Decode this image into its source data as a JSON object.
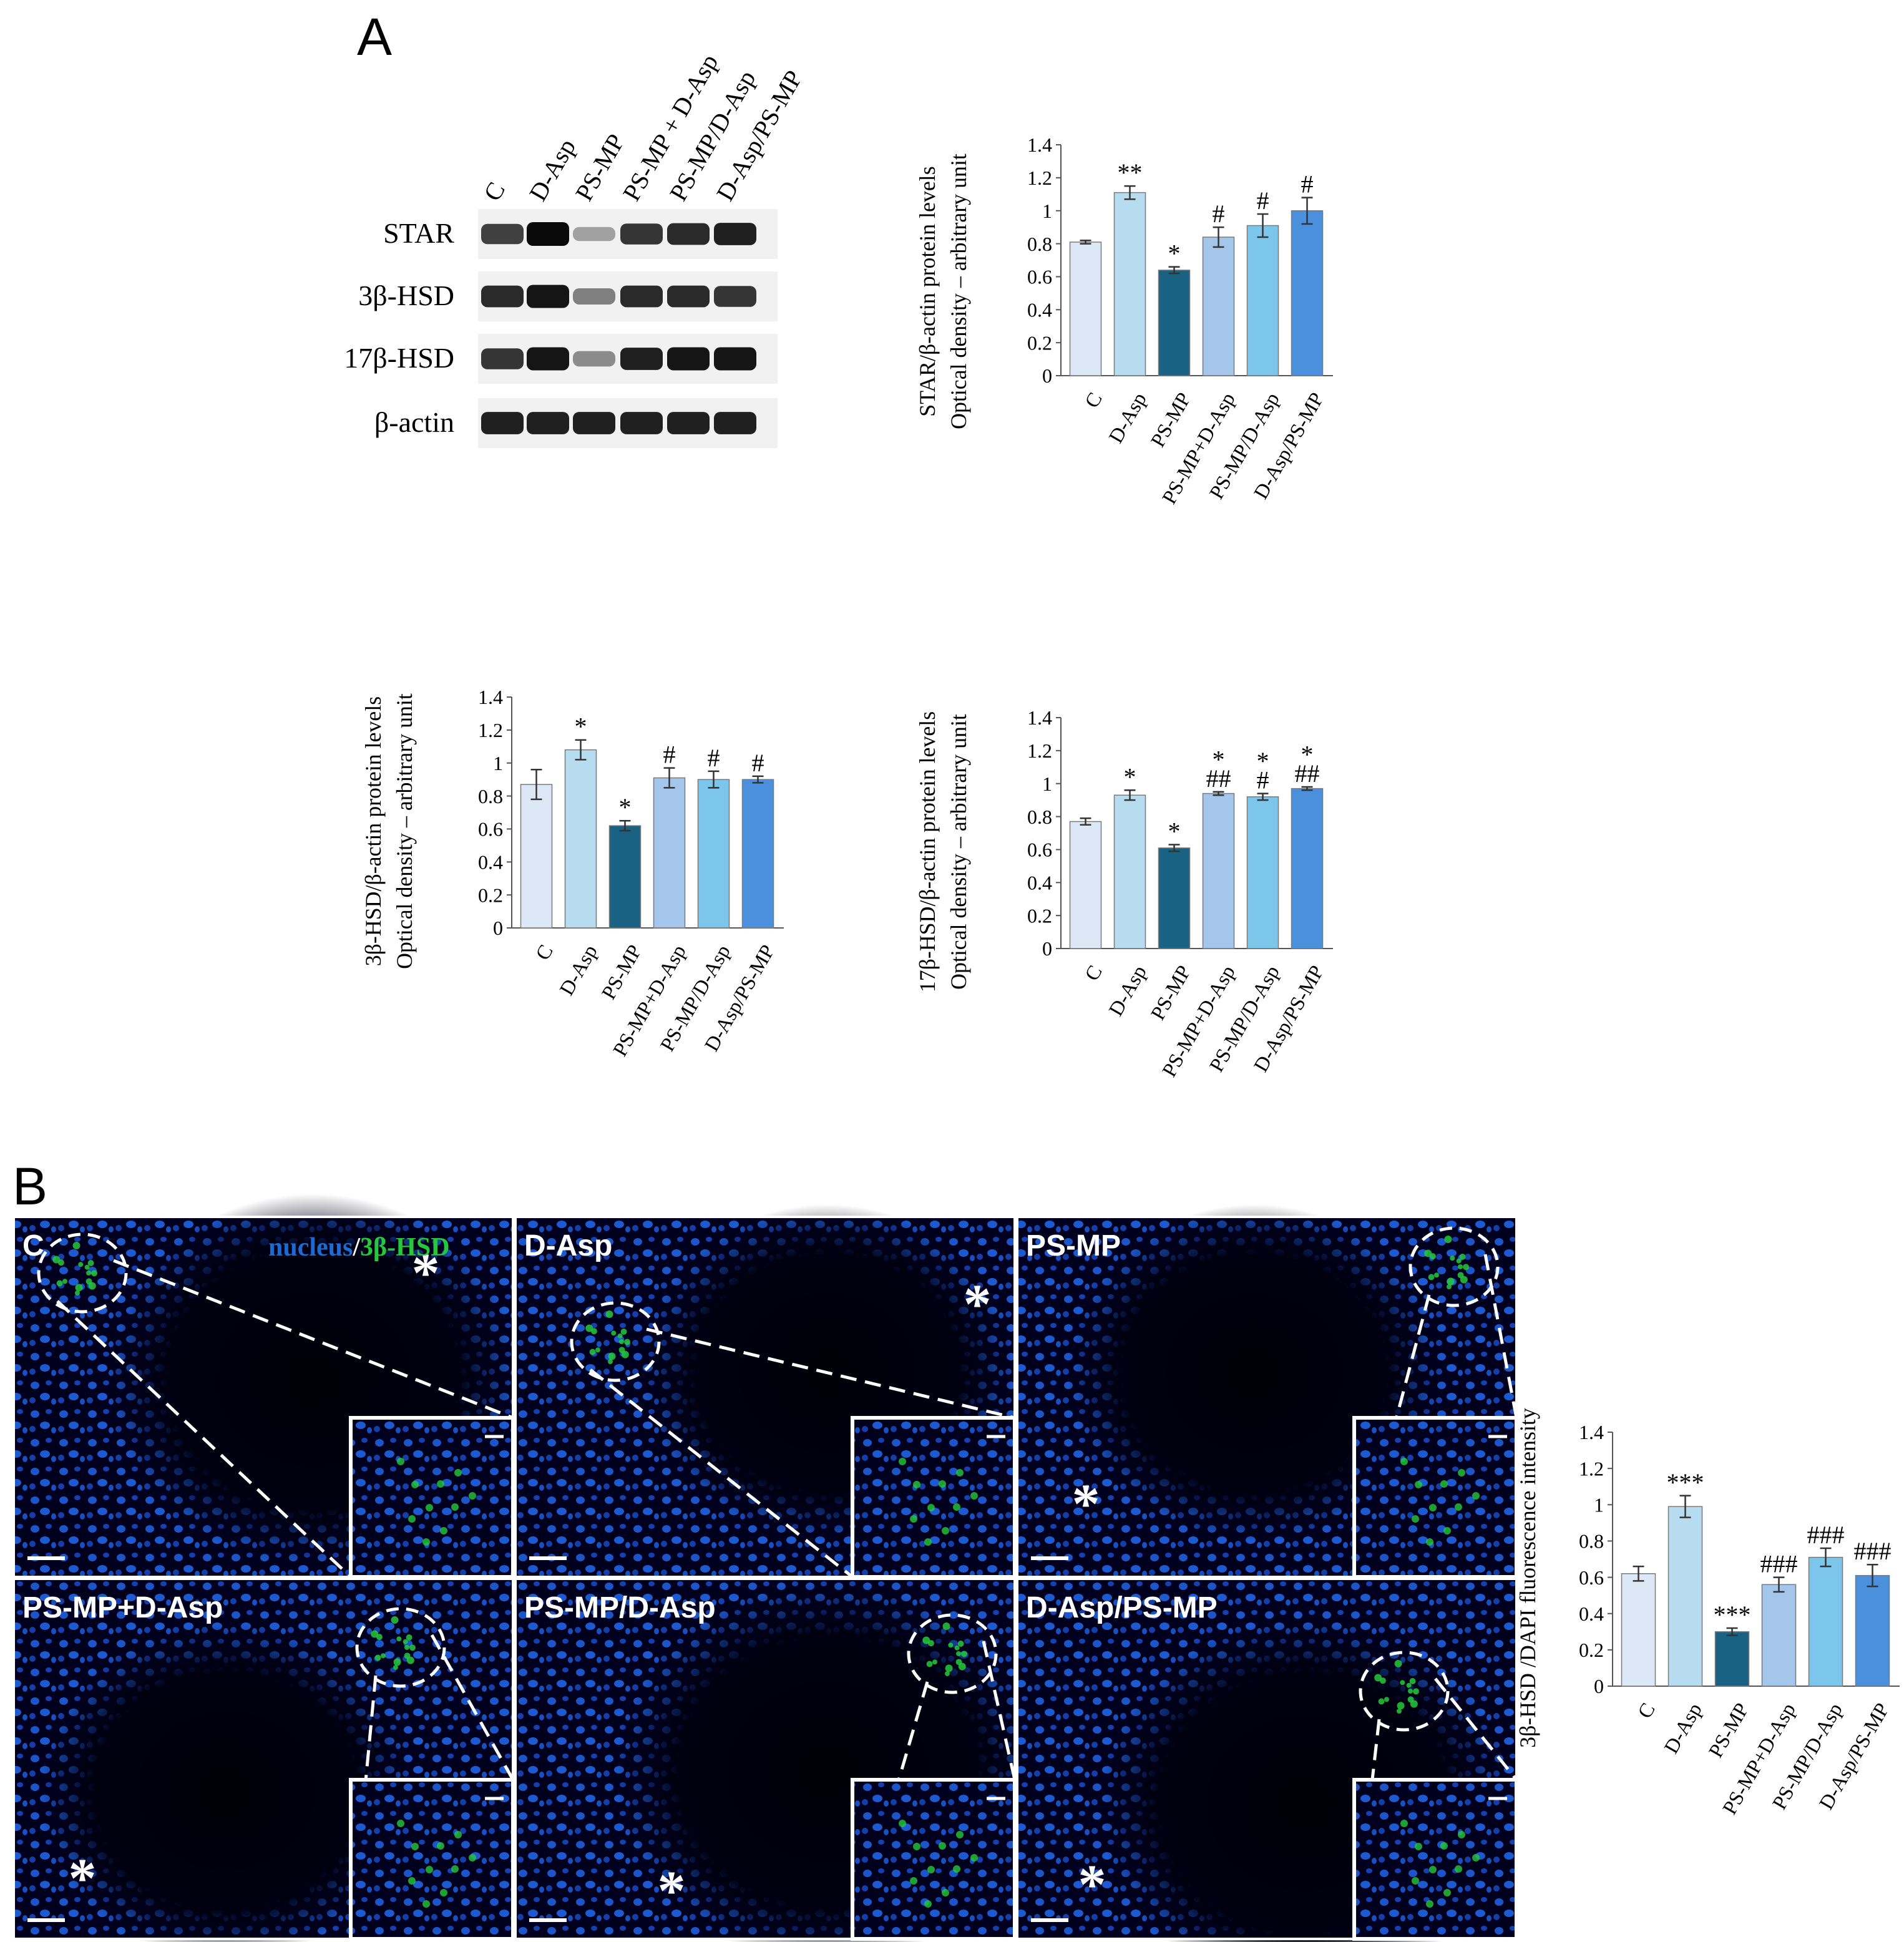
{
  "panel_a_label": "A",
  "panel_b_label": "B",
  "western_blot": {
    "lane_labels": [
      "C",
      "D-Asp",
      "PS-MP",
      "PS-MP + D-Asp",
      "PS-MP/D-Asp",
      "D-Asp/PS-MP"
    ],
    "row_labels": [
      "STAR",
      "3β-HSD",
      "17β-HSD",
      "β-actin"
    ],
    "band_intensity": [
      [
        0.75,
        1.0,
        0.3,
        0.8,
        0.85,
        0.9
      ],
      [
        0.85,
        0.95,
        0.45,
        0.85,
        0.85,
        0.8
      ],
      [
        0.8,
        0.95,
        0.4,
        0.9,
        0.95,
        0.95
      ],
      [
        0.9,
        0.9,
        0.9,
        0.9,
        0.9,
        0.9
      ]
    ]
  },
  "micrographs": {
    "legend_nucleus": "nucleus",
    "legend_sep": "/",
    "legend_hsd": "3β-HSD",
    "asterisk": "*",
    "panels": [
      {
        "label": "C"
      },
      {
        "label": "D-Asp"
      },
      {
        "label": "PS-MP"
      },
      {
        "label": "PS-MP+D-Asp"
      },
      {
        "label": "PS-MP/D-Asp"
      },
      {
        "label": "D-Asp/PS-MP"
      }
    ]
  },
  "colors": {
    "C": "#dde8f6",
    "D-Asp": "#b8dcef",
    "PS-MP": "#1a6284",
    "PS-MP+D-Asp": "#a4c6ea",
    "PS-MP/D-Asp": "#7cc6ec",
    "D-Asp/PS-MP": "#4a90dc",
    "nucleus": "#1b6ad6",
    "hsd": "#27c83a"
  },
  "chart_data": [
    {
      "type": "bar",
      "ylabel_line1": "STAR/β-actin protein levels",
      "ylabel_line2": "Optical density – arbitrary unit",
      "categories": [
        "C",
        "D-Asp",
        "PS-MP",
        "PS-MP+D-Asp",
        "PS-MP/D-Asp",
        "D-Asp/PS-MP"
      ],
      "values": [
        0.81,
        1.11,
        0.64,
        0.84,
        0.91,
        1.0
      ],
      "errors": [
        0.01,
        0.04,
        0.02,
        0.06,
        0.07,
        0.08
      ],
      "annotations": [
        [],
        [
          "**"
        ],
        [
          "*"
        ],
        [
          "#"
        ],
        [
          "#"
        ],
        [
          "#"
        ]
      ],
      "ylim": [
        0,
        1.4
      ],
      "ticks": [
        "0",
        "0.2",
        "0.4",
        "0.6",
        "0.8",
        "1",
        "1.2",
        "1.4"
      ]
    },
    {
      "type": "bar",
      "ylabel_line1": "3β-HSD/β-actin protein levels",
      "ylabel_line2": "Optical density – arbitrary unit",
      "categories": [
        "C",
        "D-Asp",
        "PS-MP",
        "PS-MP+D-Asp",
        "PS-MP/D-Asp",
        "D-Asp/PS-MP"
      ],
      "values": [
        0.87,
        1.08,
        0.62,
        0.91,
        0.9,
        0.9
      ],
      "errors": [
        0.09,
        0.06,
        0.03,
        0.06,
        0.05,
        0.02
      ],
      "annotations": [
        [],
        [
          "*"
        ],
        [
          "*"
        ],
        [
          "#"
        ],
        [
          "#"
        ],
        [
          "#"
        ]
      ],
      "ylim": [
        0,
        1.4
      ],
      "ticks": [
        "0",
        "0.2",
        "0.4",
        "0.6",
        "0.8",
        "1",
        "1.2",
        "1.4"
      ]
    },
    {
      "type": "bar",
      "ylabel_line1": "17β-HSD/β-actin protein levels",
      "ylabel_line2": "Optical density – arbitrary unit",
      "categories": [
        "C",
        "D-Asp",
        "PS-MP",
        "PS-MP+D-Asp",
        "PS-MP/D-Asp",
        "D-Asp/PS-MP"
      ],
      "values": [
        0.77,
        0.93,
        0.61,
        0.94,
        0.92,
        0.97
      ],
      "errors": [
        0.02,
        0.03,
        0.02,
        0.01,
        0.02,
        0.01
      ],
      "annotations": [
        [],
        [
          "*"
        ],
        [
          "*"
        ],
        [
          "##",
          "*"
        ],
        [
          "#",
          "*"
        ],
        [
          "##",
          "*"
        ]
      ],
      "ylim": [
        0,
        1.4
      ],
      "ticks": [
        "0",
        "0.2",
        "0.4",
        "0.6",
        "0.8",
        "1",
        "1.2",
        "1.4"
      ]
    },
    {
      "type": "bar",
      "ylabel_line1": "3β-HSD /DAPI fluorescence intensity",
      "ylabel_line2": "",
      "categories": [
        "C",
        "D-Asp",
        "PS-MP",
        "PS-MP+D-Asp",
        "PS-MP/D-Asp",
        "D-Asp/PS-MP"
      ],
      "values": [
        0.62,
        0.99,
        0.3,
        0.56,
        0.71,
        0.61
      ],
      "errors": [
        0.04,
        0.06,
        0.02,
        0.04,
        0.05,
        0.06
      ],
      "annotations": [
        [],
        [
          "***"
        ],
        [
          "***"
        ],
        [
          "###"
        ],
        [
          "###"
        ],
        [
          "###"
        ]
      ],
      "ylim": [
        0,
        1.4
      ],
      "ticks": [
        "0",
        "0.2",
        "0.4",
        "0.6",
        "0.8",
        "1",
        "1.2",
        "1.4"
      ]
    }
  ]
}
